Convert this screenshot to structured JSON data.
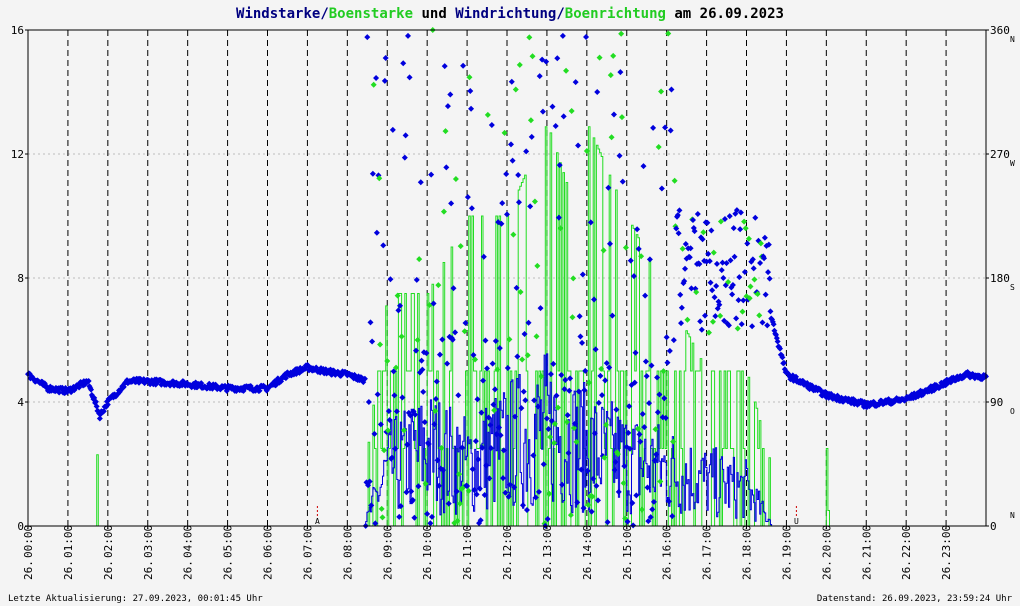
{
  "title": {
    "part1": "Windstarke",
    "sep1": "/",
    "part2": "Boenstarke",
    "mid": " und ",
    "part3": "Windrichtung",
    "sep2": "/",
    "part4": "Boenrichtung",
    "tail": " am 26.09.2023"
  },
  "footer": {
    "left": "Letzte Aktualisierung: 27.09.2023, 00:01:45 Uhr",
    "right": "Datenstand: 26.09.2023, 23:59:24 Uhr"
  },
  "colors": {
    "wind": "#0000dd",
    "gust": "#22dd22",
    "title_dark": "#000080",
    "title_green": "#22cc22",
    "marker": "#cc0000",
    "grid": "#000000",
    "hgrid": "#bbbbbb",
    "background": "#f4f4f4"
  },
  "chart_data": {
    "type": "line",
    "date_label": "26.",
    "x_unit": "hours",
    "xlim": [
      0,
      24
    ],
    "x_ticks": [
      "00:00",
      "01:00",
      "02:00",
      "03:00",
      "04:00",
      "05:00",
      "06:00",
      "07:00",
      "08:00",
      "09:00",
      "10:00",
      "11:00",
      "12:00",
      "13:00",
      "14:00",
      "15:00",
      "16:00",
      "17:00",
      "18:00",
      "19:00",
      "20:00",
      "21:00",
      "22:00",
      "23:00"
    ],
    "ylim_left": [
      0,
      16
    ],
    "y_ticks_left": [
      "0",
      "4",
      "8",
      "12",
      "16"
    ],
    "ylim_right": [
      0,
      360
    ],
    "y_ticks_right": [
      "0",
      "90",
      "180",
      "270",
      "360"
    ],
    "compass_labels": [
      {
        "value": 0,
        "label": "N"
      },
      {
        "value": 90,
        "label": "O"
      },
      {
        "value": 180,
        "label": "S"
      },
      {
        "value": 270,
        "label": "W"
      },
      {
        "value": 360,
        "label": "N"
      }
    ],
    "sun_markers": [
      {
        "time": 7.25,
        "label": "A"
      },
      {
        "time": 19.25,
        "label": "U"
      }
    ],
    "grid": true,
    "series": [
      {
        "key": "wind_speed",
        "values_summary": [
          [
            0,
            0
          ],
          [
            8.5,
            0.2
          ],
          [
            9.0,
            1.4
          ],
          [
            10.0,
            1.9
          ],
          [
            11.0,
            1.5
          ],
          [
            12.0,
            2.0
          ],
          [
            13.0,
            2.4
          ],
          [
            14.0,
            1.9
          ],
          [
            15.0,
            1.6
          ],
          [
            16.0,
            1.4
          ],
          [
            17.0,
            1.1
          ],
          [
            18.0,
            0.9
          ],
          [
            18.5,
            0.2
          ],
          [
            19.0,
            0
          ],
          [
            20.0,
            0
          ],
          [
            24.0,
            0
          ]
        ]
      },
      {
        "key": "gust_speed",
        "values_summary": [
          [
            0,
            0
          ],
          [
            1.7,
            2.3
          ],
          [
            8.5,
            2.5
          ],
          [
            9.0,
            7.5
          ],
          [
            10.0,
            7.5
          ],
          [
            11.0,
            10.0
          ],
          [
            12.0,
            10.0
          ],
          [
            13.0,
            13.0
          ],
          [
            13.5,
            11.0
          ],
          [
            14.0,
            13.0
          ],
          [
            15.0,
            10.0
          ],
          [
            16.0,
            7.5
          ],
          [
            17.0,
            5.0
          ],
          [
            18.0,
            5.0
          ],
          [
            18.5,
            2.5
          ],
          [
            19.0,
            0
          ],
          [
            20.0,
            2.5
          ],
          [
            20.05,
            0
          ],
          [
            24.0,
            0
          ]
        ]
      },
      {
        "key": "wind_direction",
        "values_summary": [
          [
            0,
            110
          ],
          [
            0.5,
            100
          ],
          [
            1.0,
            98
          ],
          [
            1.5,
            105
          ],
          [
            1.8,
            80
          ],
          [
            2.0,
            90
          ],
          [
            2.5,
            105
          ],
          [
            3.0,
            105
          ],
          [
            4.0,
            103
          ],
          [
            5.0,
            100
          ],
          [
            6.0,
            100
          ],
          [
            6.5,
            110
          ],
          [
            7.0,
            115
          ],
          [
            7.5,
            112
          ],
          [
            8.0,
            110
          ],
          [
            8.5,
            105
          ],
          [
            18.5,
            165
          ],
          [
            19.0,
            110
          ],
          [
            20.0,
            95
          ],
          [
            21.0,
            88
          ],
          [
            22.0,
            92
          ],
          [
            23.0,
            104
          ],
          [
            23.5,
            110
          ],
          [
            24.0,
            108
          ]
        ]
      }
    ]
  }
}
